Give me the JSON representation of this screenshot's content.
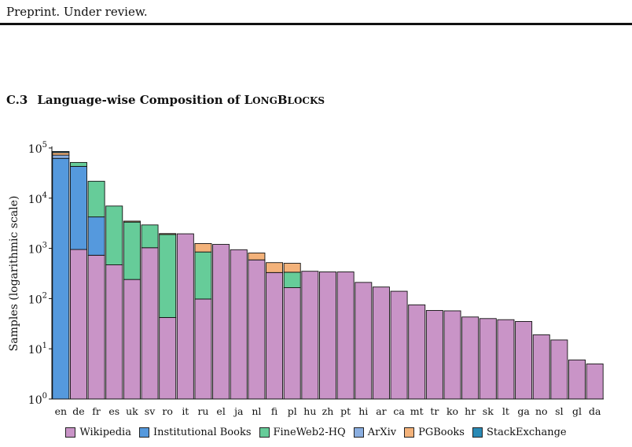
{
  "page": {
    "header": "Preprint. Under review.",
    "section_number": "C.3",
    "section_title_lead": "Language-wise Composition of ",
    "section_title_smallcaps": [
      {
        "big": "L",
        "small": "ONG"
      },
      {
        "big": "B",
        "small": "LOCKS"
      }
    ]
  },
  "chart_data": {
    "type": "bar",
    "stacked": true,
    "yscale": "log",
    "ylim": [
      1,
      100000
    ],
    "ylabel": "Samples (logarithmic scale)",
    "yticks": [
      {
        "base": "10",
        "exp": "0"
      },
      {
        "base": "10",
        "exp": "1"
      },
      {
        "base": "10",
        "exp": "2"
      },
      {
        "base": "10",
        "exp": "3"
      },
      {
        "base": "10",
        "exp": "4"
      },
      {
        "base": "10",
        "exp": "5"
      }
    ],
    "categories": [
      "en",
      "de",
      "fr",
      "es",
      "uk",
      "sv",
      "ro",
      "it",
      "ru",
      "el",
      "ja",
      "nl",
      "fi",
      "pl",
      "hu",
      "zh",
      "pt",
      "hi",
      "ar",
      "ca",
      "mt",
      "tr",
      "ko",
      "hr",
      "sk",
      "lt",
      "ga",
      "no",
      "sl",
      "gl",
      "da"
    ],
    "series": [
      {
        "name": "Wikipedia",
        "color": "#c994c7",
        "values": [
          0,
          950,
          730,
          470,
          240,
          1030,
          42,
          1950,
          98,
          1200,
          940,
          590,
          330,
          165,
          350,
          340,
          340,
          210,
          170,
          140,
          75,
          58,
          57,
          43,
          40,
          38,
          35,
          19,
          15,
          6,
          5
        ]
      },
      {
        "name": "Institutional Books",
        "color": "#5599dd",
        "values": [
          62000,
          42000,
          3500,
          0,
          0,
          0,
          0,
          0,
          0,
          0,
          0,
          0,
          0,
          0,
          0,
          0,
          0,
          0,
          0,
          0,
          0,
          0,
          0,
          0,
          0,
          0,
          0,
          0,
          0,
          0,
          0
        ]
      },
      {
        "name": "FineWeb2-HQ",
        "color": "#66cc99",
        "values": [
          0,
          8500,
          17500,
          6500,
          3100,
          1900,
          1850,
          0,
          750,
          0,
          0,
          0,
          0,
          170,
          0,
          0,
          0,
          0,
          0,
          0,
          0,
          0,
          0,
          0,
          0,
          0,
          0,
          0,
          0,
          0,
          0
        ]
      },
      {
        "name": "ArXiv",
        "color": "#8aaee0",
        "values": [
          10000,
          0,
          0,
          0,
          0,
          0,
          0,
          0,
          0,
          0,
          0,
          0,
          0,
          0,
          0,
          0,
          0,
          0,
          0,
          0,
          0,
          0,
          0,
          0,
          0,
          0,
          0,
          0,
          0,
          0,
          0
        ]
      },
      {
        "name": "PGBooks",
        "color": "#f3b27a",
        "values": [
          9000,
          0,
          0,
          0,
          150,
          0,
          80,
          0,
          400,
          0,
          0,
          220,
          190,
          170,
          0,
          0,
          0,
          0,
          0,
          0,
          0,
          0,
          0,
          0,
          0,
          0,
          0,
          0,
          0,
          0,
          0
        ]
      },
      {
        "name": "StackExchange",
        "color": "#2a8ab5",
        "values": [
          4000,
          0,
          0,
          0,
          0,
          0,
          0,
          0,
          0,
          0,
          0,
          0,
          0,
          0,
          0,
          0,
          0,
          0,
          0,
          0,
          0,
          0,
          0,
          0,
          0,
          0,
          0,
          0,
          0,
          0,
          0
        ]
      }
    ],
    "legend_position": "bottom",
    "grid": false
  }
}
